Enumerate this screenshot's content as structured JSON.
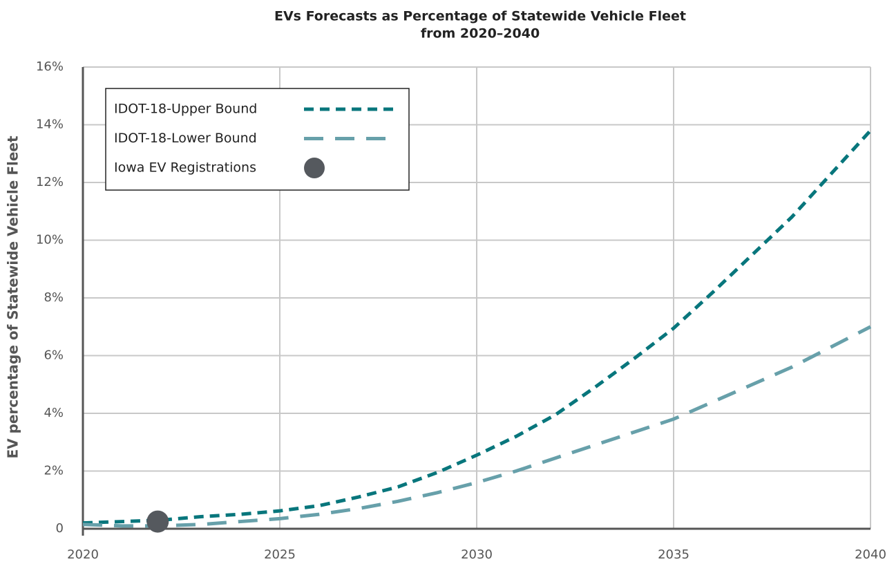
{
  "chart_data": {
    "type": "line",
    "title": [
      "EVs Forecasts as Percentage of Statewide Vehicle Fleet",
      "from 2020–2040"
    ],
    "y_label": "EV percentage of Statewide Vehicle Fleet",
    "x": [
      2020,
      2021,
      2022,
      2023,
      2024,
      2025,
      2026,
      2027,
      2028,
      2029,
      2030,
      2031,
      2032,
      2033,
      2034,
      2035,
      2036,
      2037,
      2038,
      2039,
      2040
    ],
    "series": [
      {
        "name": "IDOT-18-Upper Bound",
        "color": "#08767c",
        "dash": "14,9",
        "values": [
          0.2,
          0.25,
          0.3,
          0.42,
          0.5,
          0.62,
          0.8,
          1.1,
          1.45,
          1.95,
          2.55,
          3.2,
          3.95,
          4.9,
          5.9,
          6.95,
          8.2,
          9.5,
          10.8,
          12.3,
          13.8
        ]
      },
      {
        "name": "IDOT-18-Lower Bound",
        "color": "#67a0aa",
        "dash": "28,17",
        "values": [
          0.15,
          0.1,
          0.1,
          0.15,
          0.25,
          0.35,
          0.5,
          0.7,
          0.95,
          1.25,
          1.6,
          2.0,
          2.45,
          2.9,
          3.35,
          3.8,
          4.4,
          5.0,
          5.6,
          6.3,
          7.0
        ]
      },
      {
        "name": "Iowa EV Registrations",
        "color": "#55595e",
        "type": "scatter",
        "x": [
          2021.9
        ],
        "values": [
          0.25
        ]
      }
    ],
    "xlim": [
      2020,
      2040
    ],
    "xticks": [
      2020,
      2025,
      2030,
      2035,
      2040
    ],
    "ylim": [
      0,
      16
    ],
    "yticks": [
      0,
      {
        "value": 2,
        "label": "2%"
      },
      {
        "value": 4,
        "label": "4%"
      },
      {
        "value": 6,
        "label": "6%"
      },
      {
        "value": 8,
        "label": "8%"
      },
      {
        "value": 10,
        "label": "10%"
      },
      {
        "value": 12,
        "label": "12%"
      },
      {
        "value": 14,
        "label": "14%"
      },
      {
        "value": 16,
        "label": "16%"
      }
    ],
    "grid": true,
    "legend": "upper left"
  }
}
